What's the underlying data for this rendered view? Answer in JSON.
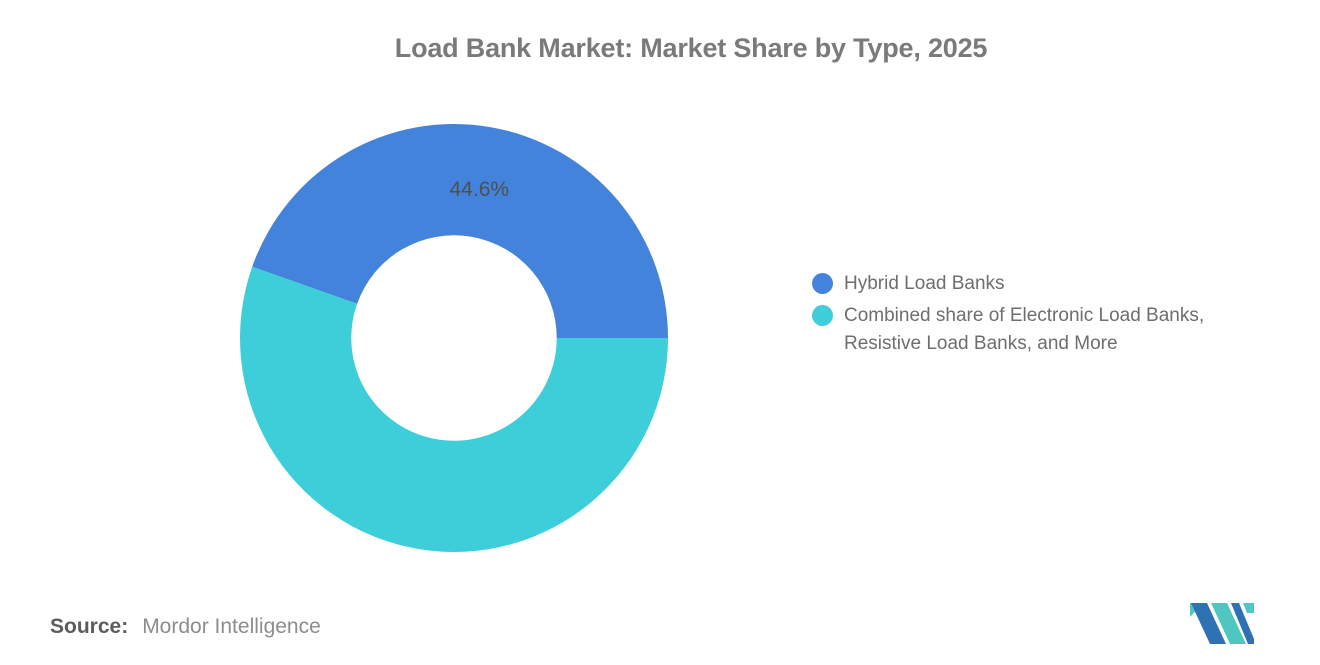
{
  "header": {
    "title": "Load Bank Market: Market Share by Type, 2025"
  },
  "chart_data": {
    "type": "pie",
    "subtype": "donut",
    "title": "Load Bank Market: Market Share by Type, 2025",
    "labels": [
      "Hybrid Load Banks",
      "Combined share of Electronic Load Banks, Resistive Load Banks, and More"
    ],
    "values": [
      44.6,
      55.4
    ],
    "colors": [
      "#4483DB",
      "#3ECED9"
    ],
    "data_labels": [
      "44.6%",
      ""
    ],
    "rotation_deg": 199.44,
    "inner_radius_ratio": 0.48,
    "label_radius_ratio": 0.7,
    "legend_position": "right",
    "background": "#ffffff"
  },
  "source": {
    "label": "Source:",
    "text": "Mordor Intelligence"
  },
  "logo": {
    "name": "mordor-intelligence-logo",
    "teal": "#4FC6BF",
    "blue": "#2E72B4"
  }
}
